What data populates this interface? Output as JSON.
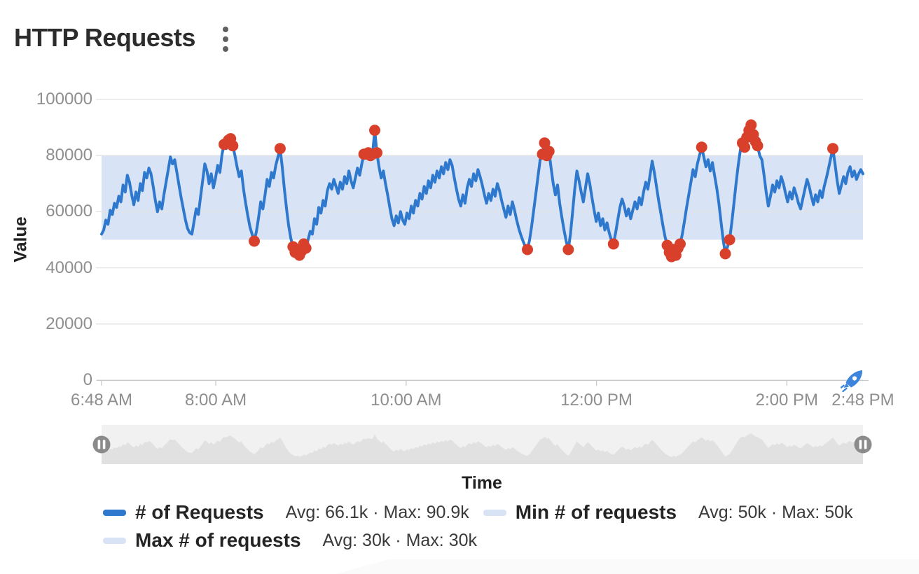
{
  "header": {
    "title": "HTTP Requests",
    "menu_icon": "kebab-vertical-icon"
  },
  "live_indicator": "rocket-icon",
  "colors": {
    "line": "#2e78cd",
    "anomaly": "#d9402b",
    "band": "#d8e4f5",
    "grid": "#e3e3e3",
    "axis": "#c9c9c9",
    "tick_text": "#8e8e8e",
    "brush_bg": "#f1f1f1",
    "brush_area": "#e1e1e1",
    "brush_handle": "#8b8b8b"
  },
  "chart_data": {
    "type": "line",
    "title": "HTTP Requests",
    "xlabel": "Time",
    "ylabel": "Value",
    "ylim": [
      0,
      100000
    ],
    "grid": true,
    "legend_position": "bottom",
    "x_range_minutes": 480,
    "x_ticks": [
      {
        "label": "6:48 AM",
        "minutes": 0
      },
      {
        "label": "8:00 AM",
        "minutes": 72
      },
      {
        "label": "10:00 AM",
        "minutes": 192
      },
      {
        "label": "12:00 PM",
        "minutes": 312
      },
      {
        "label": "2:00 PM",
        "minutes": 432
      },
      {
        "label": "2:48 PM",
        "minutes": 480
      }
    ],
    "y_ticks": [
      {
        "label": "100000",
        "value": 100000
      },
      {
        "label": "80000",
        "value": 80000
      },
      {
        "label": "60000",
        "value": 60000
      },
      {
        "label": "40000",
        "value": 40000
      },
      {
        "label": "20000",
        "value": 20000
      },
      {
        "label": "0",
        "value": 0
      }
    ],
    "band": {
      "low_k": 50,
      "high_k": 80
    },
    "series": [
      {
        "name": "# of Requests",
        "stats": "Avg: 66.1k · Max: 90.9k",
        "color": "#2e78cd",
        "anomaly_color": "#d9402b",
        "values_unit": "thousands",
        "values_k": [
          52,
          53.5,
          57,
          55.5,
          60.5,
          59,
          63,
          61.5,
          65.5,
          63.5,
          69.5,
          67,
          73,
          70.5,
          66,
          62.5,
          67,
          64,
          70,
          67.5,
          74,
          72,
          75.5,
          73.5,
          69,
          64,
          60,
          63.5,
          61,
          66,
          70.5,
          75,
          79.5,
          77,
          78.5,
          74,
          69.5,
          65,
          61,
          57,
          54,
          52.5,
          52,
          56.5,
          61,
          59,
          65,
          71,
          77,
          74.5,
          70,
          73.5,
          68.5,
          72,
          76.5,
          74,
          80.5,
          84,
          82.5,
          85.5,
          86,
          83.5,
          80,
          76,
          72.5,
          74.5,
          68,
          63,
          58.5,
          54.5,
          52,
          49.5,
          53,
          58,
          63.5,
          61,
          66,
          71.5,
          69,
          74,
          72,
          76.5,
          79.5,
          82.5,
          76,
          68,
          61,
          55,
          50.5,
          47.5,
          45.5,
          46.5,
          44.5,
          46,
          48.5,
          47,
          50,
          53,
          52,
          57.5,
          55.5,
          61.5,
          59.5,
          64,
          62,
          67.5,
          70,
          68,
          71.5,
          69,
          66.5,
          70.5,
          68,
          72.5,
          70,
          74.5,
          71,
          68.5,
          72,
          75.5,
          73,
          77,
          80.5,
          79,
          81,
          80,
          80.5,
          89,
          81,
          76,
          72,
          74.5,
          70,
          66,
          61.5,
          57.5,
          55,
          58.5,
          56,
          60,
          57,
          55.5,
          59.5,
          57.5,
          62,
          59.5,
          64,
          62,
          66.5,
          64.5,
          69,
          66.5,
          71,
          68.5,
          73,
          70.5,
          74.5,
          72,
          76,
          73.5,
          77.5,
          75,
          78.5,
          76.5,
          72,
          68,
          64.5,
          62,
          66,
          63,
          68.5,
          71.5,
          69,
          73.5,
          71,
          75,
          72.5,
          69.5,
          66,
          63,
          66.5,
          64,
          68,
          65.5,
          70,
          67.5,
          64,
          61,
          58,
          62,
          59,
          63.5,
          60.5,
          57,
          54,
          51.5,
          49.5,
          47.5,
          46.5,
          50,
          55,
          61,
          67,
          73,
          79,
          80.5,
          84.5,
          80,
          81.5,
          75.5,
          70,
          66,
          69.5,
          63,
          58,
          53.5,
          49.5,
          46.5,
          52,
          60,
          68,
          74.5,
          71,
          67,
          63.5,
          68.5,
          73.5,
          70,
          65,
          60.5,
          56.5,
          59.5,
          55,
          57.5,
          53.5,
          56,
          52.5,
          50,
          48.5,
          52.5,
          57,
          61.5,
          64.5,
          62,
          58.5,
          61,
          57.5,
          60.5,
          63.5,
          61,
          65,
          62.5,
          67,
          70.5,
          68,
          73,
          78,
          74,
          69,
          64,
          59.5,
          55,
          51,
          48,
          45.5,
          44,
          46.5,
          44.5,
          47,
          48.5,
          52,
          56.5,
          61.5,
          66,
          70.5,
          75,
          72.5,
          77,
          80,
          83,
          79.5,
          76,
          78.5,
          74.5,
          77.5,
          73,
          68.5,
          63,
          56.5,
          50,
          45,
          47.5,
          50,
          56,
          63,
          70,
          76.5,
          82,
          84.5,
          83,
          86.5,
          89,
          90.9,
          87.5,
          85,
          83.5,
          80,
          78.5,
          73,
          67,
          62,
          65.5,
          69.5,
          67,
          71,
          68.5,
          72.5,
          70,
          66.5,
          63.5,
          67,
          64.5,
          68.5,
          66,
          63,
          61,
          64.5,
          68,
          71.5,
          69,
          65.5,
          62.5,
          66,
          63.5,
          67.5,
          65,
          69,
          72,
          75.5,
          79,
          82.5,
          77,
          71,
          66.5,
          69.5,
          72.5,
          70,
          74,
          76,
          72.5,
          74.5,
          71.5,
          73.5,
          75,
          73.5
        ],
        "anomaly_indices": [
          57,
          59,
          60,
          61,
          71,
          83,
          89,
          90,
          91,
          92,
          93,
          94,
          95,
          122,
          124,
          125,
          126,
          127,
          128,
          198,
          205,
          206,
          207,
          208,
          217,
          238,
          263,
          264,
          265,
          266,
          267,
          268,
          269,
          279,
          290,
          292,
          298,
          299,
          300,
          301,
          302,
          303,
          304,
          305,
          340
        ]
      },
      {
        "name": "Min # of requests",
        "stats": "Avg: 50k · Max: 50k",
        "color": "#d8e4f5",
        "constant_value_k": 50
      },
      {
        "name": "Max # of requests",
        "stats": "Avg: 30k · Max: 30k",
        "color": "#d8e4f5",
        "constant_value_k": 30
      }
    ]
  },
  "brush": {
    "left_handle": "pause-icon",
    "right_handle": "pause-icon"
  }
}
